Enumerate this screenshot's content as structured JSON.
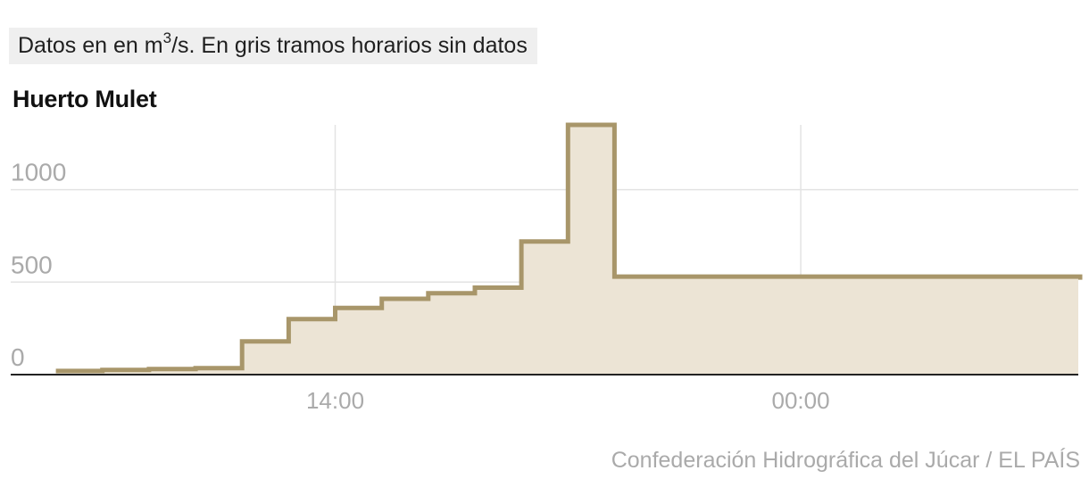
{
  "note": {
    "prefix": "Datos en en m",
    "superscript": "3",
    "suffix": "/s. En gris tramos horarios sin datos"
  },
  "station": "Huerto Mulet",
  "source": "Confederación Hidrográfica del Júcar / EL PAÍS",
  "chart_data": {
    "type": "area",
    "step": true,
    "x_unit": "hours (00:00 = midnight)",
    "x_ticks": [
      {
        "x": 14,
        "label": "14:00"
      },
      {
        "x": 24,
        "label": "00:00"
      }
    ],
    "y_ticks": [
      {
        "y": 0,
        "label": "0"
      },
      {
        "y": 500,
        "label": "500"
      },
      {
        "y": 1000,
        "label": "1000"
      }
    ],
    "xlim": [
      6.8,
      30
    ],
    "ylim": [
      0,
      1350
    ],
    "grid": true,
    "series": [
      {
        "x": [
          8,
          9,
          10,
          11,
          12,
          13,
          14,
          15,
          16,
          17,
          18,
          19,
          20,
          30
        ],
        "values": [
          20,
          25,
          30,
          35,
          180,
          300,
          360,
          410,
          440,
          470,
          720,
          1350,
          530,
          525
        ]
      }
    ],
    "colors": {
      "line": "#a8966a",
      "fill": "#ece4d5",
      "grid": "#e3e3e3",
      "axis": "#222222",
      "tick_text": "#aaaaaa"
    }
  }
}
